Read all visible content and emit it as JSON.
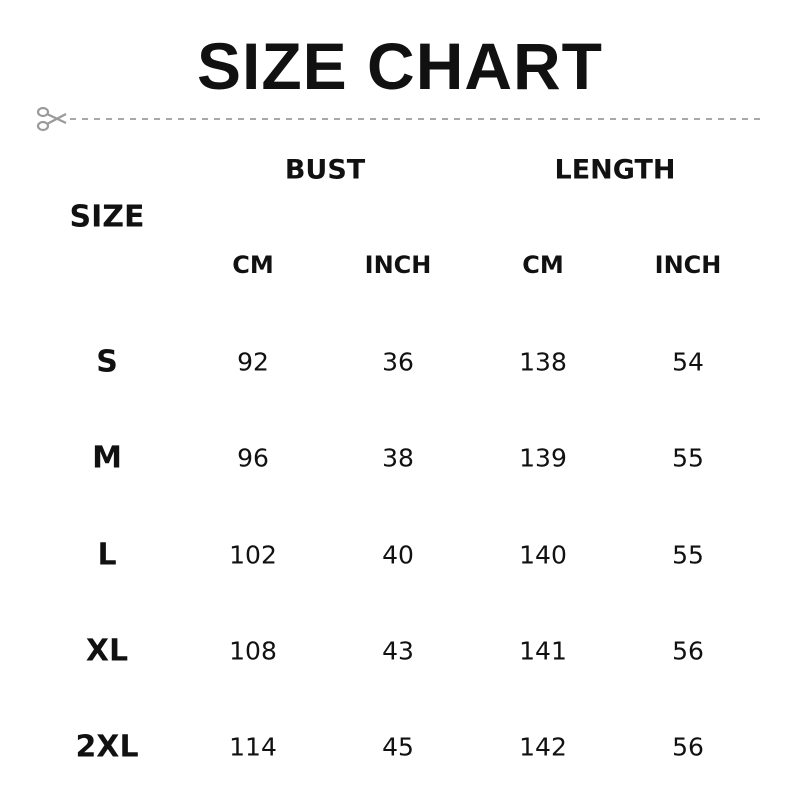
{
  "title": "SIZE CHART",
  "cut_line_icon": "scissors-icon",
  "headers": {
    "size": "SIZE",
    "groups": [
      {
        "label": "BUST",
        "units": [
          "CM",
          "INCH"
        ]
      },
      {
        "label": "LENGTH",
        "units": [
          "CM",
          "INCH"
        ]
      }
    ]
  },
  "rows": [
    {
      "size": "S",
      "values": [
        "92",
        "36",
        "138",
        "54"
      ]
    },
    {
      "size": "M",
      "values": [
        "96",
        "38",
        "139",
        "55"
      ]
    },
    {
      "size": "L",
      "values": [
        "102",
        "40",
        "140",
        "55"
      ]
    },
    {
      "size": "XL",
      "values": [
        "108",
        "43",
        "141",
        "56"
      ]
    },
    {
      "size": "2XL",
      "values": [
        "114",
        "45",
        "142",
        "56"
      ]
    }
  ]
}
